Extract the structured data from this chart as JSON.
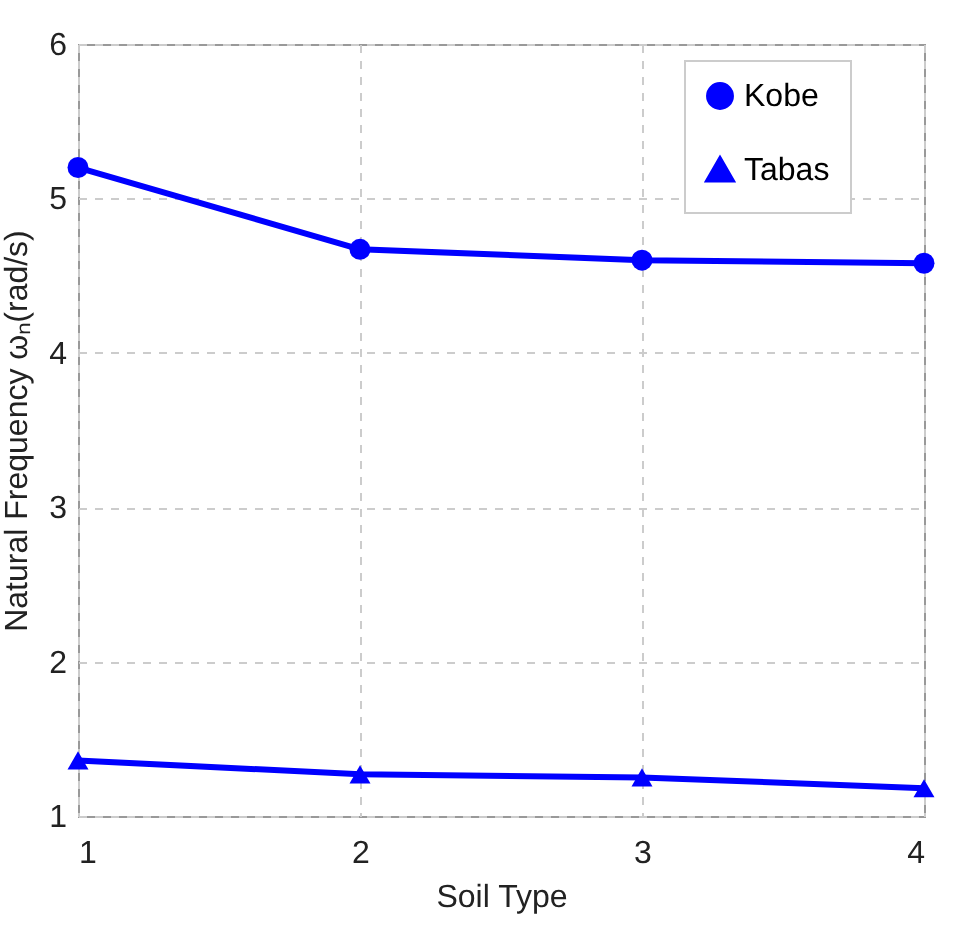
{
  "chart_data": {
    "type": "line",
    "xlabel": "Soil Type",
    "ylabel": "Natural Frequency ωₙ(rad/s)",
    "x": [
      1,
      2,
      3,
      4
    ],
    "xlim": [
      1,
      4
    ],
    "xticks": [
      1,
      2,
      3,
      4
    ],
    "ylim": [
      1,
      6
    ],
    "yticks": [
      1,
      2,
      3,
      4,
      5,
      6
    ],
    "series": [
      {
        "name": "Kobe",
        "color": "#0000ff",
        "marker": "circle",
        "values": [
          5.2,
          4.67,
          4.6,
          4.58
        ]
      },
      {
        "name": "Tabas",
        "color": "#0000ff",
        "marker": "triangle",
        "values": [
          1.36,
          1.27,
          1.25,
          1.18
        ]
      }
    ],
    "grid": true,
    "legend": "top right",
    "line_style": "solid"
  }
}
